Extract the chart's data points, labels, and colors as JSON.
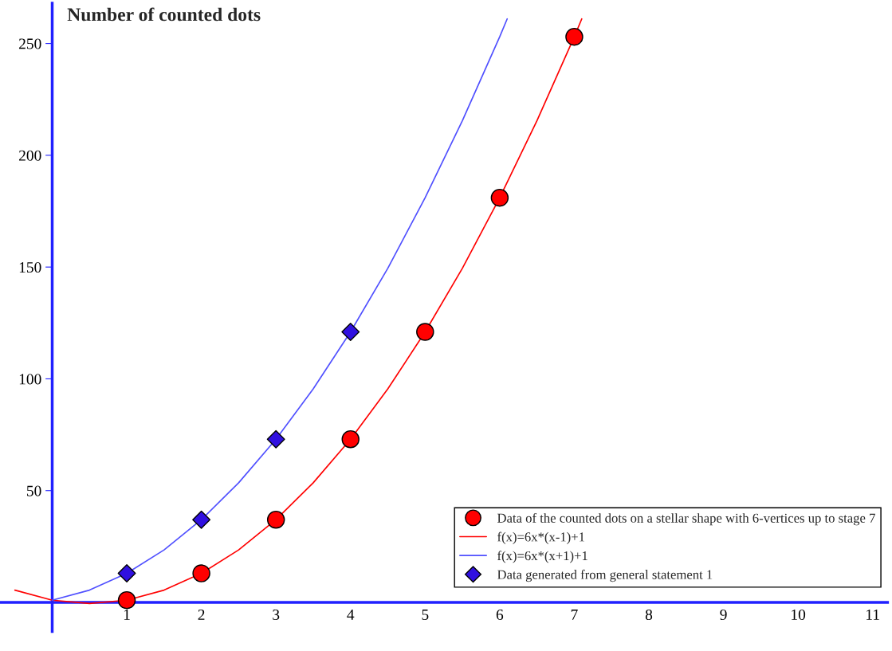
{
  "chart_data": {
    "type": "scatter",
    "ylabel": "Number of counted dots",
    "xlim": [
      -0.7,
      11.2
    ],
    "ylim": [
      -13,
      268
    ],
    "xticks": [
      1,
      2,
      3,
      4,
      5,
      6,
      7,
      8,
      9,
      10,
      11
    ],
    "yticks": [
      50,
      100,
      150,
      200,
      250
    ],
    "grid": false,
    "legend": "bottom right",
    "series": [
      {
        "name": "Data of the counted dots on a stellar shape with 6-vertices up to stage 7",
        "color": "#ff0000",
        "marker": "circle",
        "x": [
          1,
          2,
          3,
          4,
          5,
          6,
          7
        ],
        "values": [
          1,
          13,
          37,
          73,
          121,
          181,
          253
        ]
      },
      {
        "type": "line",
        "name": "f(x)=6x*(x-1)+1",
        "color": "#ff0000",
        "marker": "none",
        "x": [
          -0.5,
          0,
          0.5,
          1,
          1.5,
          2,
          2.5,
          3,
          3.5,
          4,
          4.5,
          5,
          5.5,
          6,
          6.5,
          7,
          7.1
        ],
        "values": [
          5.5,
          1,
          -0.5,
          1,
          5.5,
          13,
          23.5,
          37,
          53.5,
          73,
          95.5,
          121,
          149.5,
          181,
          215.5,
          253,
          261
        ]
      },
      {
        "type": "line",
        "name": "f(x)=6x*(x+1)+1",
        "color": "#5050ff",
        "marker": "none",
        "x": [
          0,
          0.5,
          1,
          1.5,
          2,
          2.5,
          3,
          3.5,
          4,
          4.5,
          5,
          5.5,
          6,
          6.1
        ],
        "values": [
          1,
          5.5,
          13,
          23.5,
          37,
          53.5,
          73,
          95.5,
          121,
          149.5,
          181,
          215.5,
          253,
          261
        ]
      },
      {
        "name": "Data generated from general statement 1",
        "color": "#3010e0",
        "marker": "diamond",
        "x": [
          1,
          2,
          3,
          4
        ],
        "values": [
          13,
          37,
          73,
          121
        ]
      }
    ]
  }
}
